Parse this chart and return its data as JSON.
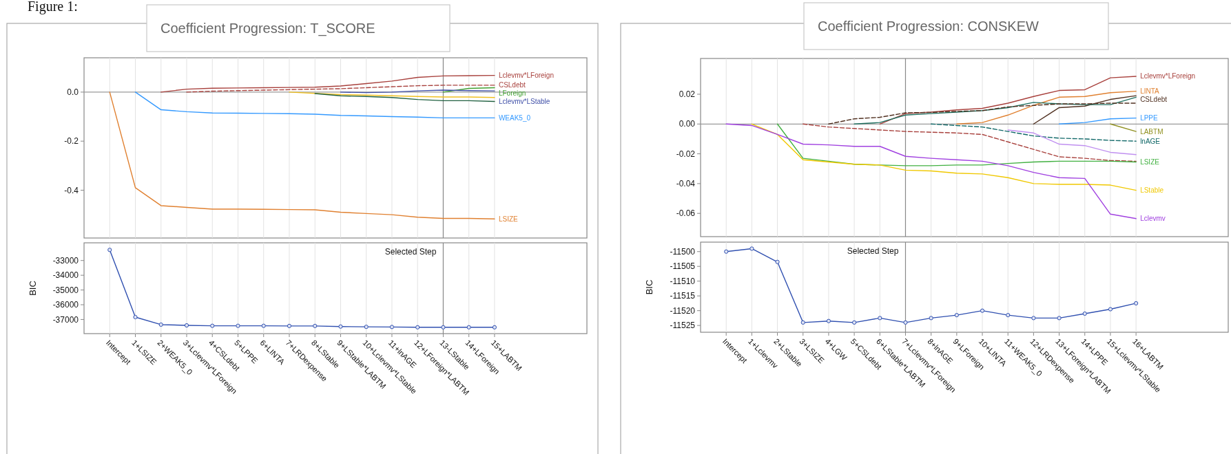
{
  "chart_data": [
    {
      "type": "line",
      "title": "Coefficient Progression: T_SCORE",
      "annotations": [
        "Figure 1:"
      ],
      "categories": [
        "Intercept",
        "1+LSIZE",
        "2+WEAK5_0",
        "3+Lclevmv*LForeign",
        "4+CSLdebt",
        "5+LPPE",
        "6+LINTA",
        "7+LRDexpense",
        "8+LStable",
        "9+LStable*LABTM",
        "10+Lclevmv*LStable",
        "11+lnAGE",
        "12+LForeign*LABTM",
        "13-LStable",
        "14+LForeign",
        "15+LABTM"
      ],
      "ylim": [
        -0.595,
        0.14
      ],
      "yticks": [
        {
          "value": 0,
          "label": "0.0"
        },
        -0.2,
        -0.4
      ],
      "grid": "x",
      "tick_labels": "y",
      "marker": "none",
      "ref_lines": [
        {
          "axis": "y",
          "value": 0
        },
        {
          "axis": "x",
          "value": "13-LStable"
        }
      ],
      "series": [
        {
          "name": "Lclevmv*LForeign",
          "color": "#a8403c",
          "values": [
            null,
            null,
            0,
            0.012,
            0.016,
            0.017,
            0.018,
            0.019,
            0.02,
            0.025,
            0.035,
            0.045,
            0.06,
            0.066,
            0.067,
            0.068
          ]
        },
        {
          "name": "CSLdebt",
          "color": "#a8403c",
          "line_style": "dashed",
          "values": [
            null,
            null,
            null,
            0,
            0.004,
            0.006,
            0.008,
            0.01,
            0.012,
            0.014,
            0.018,
            0.022,
            0.026,
            0.028,
            0.028,
            0.028
          ]
        },
        {
          "name": "LForeign",
          "color": "#40a030",
          "values": [
            null,
            null,
            null,
            null,
            null,
            null,
            null,
            null,
            null,
            null,
            null,
            null,
            null,
            0,
            0.015,
            0.018
          ]
        },
        {
          "name": "Lclevmv*LStable",
          "color": "#4050a8",
          "values": [
            null,
            null,
            null,
            null,
            null,
            null,
            null,
            null,
            null,
            0,
            -0.002,
            0,
            0.005,
            0.008,
            0.006,
            0.005
          ]
        },
        {
          "color": "#f0c020",
          "values": [
            null,
            null,
            null,
            null,
            null,
            null,
            null,
            0,
            -0.005,
            -0.01,
            -0.012,
            -0.015,
            -0.018,
            -0.02,
            -0.02,
            -0.022
          ]
        },
        {
          "color": "#206040",
          "values": [
            null,
            null,
            null,
            null,
            null,
            null,
            null,
            null,
            -0.006,
            -0.015,
            -0.018,
            -0.022,
            -0.03,
            -0.035,
            -0.035,
            -0.038
          ]
        },
        {
          "name": "WEAK5_0",
          "color": "#3399ff",
          "values": [
            null,
            0,
            -0.072,
            -0.08,
            -0.085,
            -0.086,
            -0.087,
            -0.088,
            -0.09,
            -0.095,
            -0.097,
            -0.1,
            -0.102,
            -0.105,
            -0.105,
            -0.105
          ]
        },
        {
          "name": "LSIZE",
          "color": "#e08030",
          "values": [
            0,
            -0.39,
            -0.463,
            -0.47,
            -0.477,
            -0.477,
            -0.478,
            -0.479,
            -0.48,
            -0.49,
            -0.495,
            -0.5,
            -0.51,
            -0.515,
            -0.515,
            -0.517
          ]
        }
      ]
    },
    {
      "type": "line",
      "ylabel": "BIC",
      "categories": [
        "Intercept",
        "1+LSIZE",
        "2+WEAK5_0",
        "3+Lclevmv*LForeign",
        "4+CSLdebt",
        "5+LPPE",
        "6+LINTA",
        "7+LRDexpense",
        "8+LStable",
        "9+LStable*LABTM",
        "10+Lclevmv*LStable",
        "11+lnAGE",
        "12+LForeign*LABTM",
        "13-LStable",
        "14+LForeign",
        "15+LABTM"
      ],
      "ylim": [
        -37960,
        -31800
      ],
      "yticks": [
        -33000,
        -34000,
        -35000,
        -36000,
        -37000
      ],
      "grid": "x",
      "marker": "circle",
      "ref_lines": [
        {
          "axis": "x",
          "value": "13-LStable",
          "label": "Selected Step"
        }
      ],
      "series": [
        {
          "color": "#3050b0",
          "values": [
            -32280,
            -36840,
            -37350,
            -37400,
            -37430,
            -37430,
            -37430,
            -37440,
            -37440,
            -37480,
            -37500,
            -37510,
            -37530,
            -37530,
            -37530,
            -37530
          ]
        }
      ]
    },
    {
      "type": "line",
      "title": "Coefficient Progression: CONSKEW",
      "categories": [
        "Intercept",
        "1+Lclevmv",
        "2+LStable",
        "3+LSIZE",
        "4+LGW",
        "5+CSLdebt",
        "6+LStable*LABTM",
        "7+Lclevmv*LForeign",
        "8+lnAGE",
        "9+LForeign",
        "10+LINTA",
        "11+WEAK5_0",
        "12+LRDexpense",
        "13+LForeign*LABTM",
        "14+LPPE",
        "15+Lclevmv*LStable",
        "16+LABTM"
      ],
      "ylim": [
        -0.0756,
        0.044
      ],
      "yticks": [
        0.02,
        {
          "value": 0,
          "label": "0.00"
        },
        -0.02,
        -0.04,
        -0.06
      ],
      "grid": "x",
      "tick_labels": "y",
      "marker": "none",
      "ref_lines": [
        {
          "axis": "y",
          "value": 0
        },
        {
          "axis": "x",
          "value": "7+Lclevmv*LForeign"
        }
      ],
      "series": [
        {
          "name": "Lclevmv*LForeign",
          "color": "#a8403c",
          "values": [
            null,
            null,
            null,
            null,
            null,
            null,
            0,
            0.007,
            0.008,
            0.0095,
            0.0105,
            0.014,
            0.0185,
            0.0225,
            0.023,
            0.031,
            0.032
          ]
        },
        {
          "name": "LINTA",
          "color": "#e08030",
          "values": [
            null,
            null,
            null,
            null,
            null,
            null,
            null,
            null,
            null,
            0,
            0.001,
            0.006,
            0.0125,
            0.018,
            0.0185,
            0.021,
            0.022
          ]
        },
        {
          "name": "CSLdebt",
          "color": "#503020",
          "values": [
            null,
            null,
            null,
            null,
            null,
            null,
            null,
            null,
            null,
            null,
            null,
            null,
            0,
            0.011,
            0.012,
            0.0165,
            0.019
          ]
        },
        {
          "color": "#207060",
          "values": [
            null,
            null,
            null,
            null,
            null,
            0,
            0.001,
            0.006,
            0.007,
            0.008,
            0.009,
            0.011,
            0.0145,
            0.0135,
            0.013,
            0.013,
            0.018
          ]
        },
        {
          "color": "#503020",
          "line_style": "dashed",
          "values": [
            null,
            null,
            null,
            null,
            0,
            0.0035,
            0.0045,
            0.0075,
            0.0078,
            0.0085,
            0.009,
            0.0115,
            0.0125,
            0.0135,
            0.0135,
            0.014,
            0.014
          ]
        },
        {
          "name": "LPPE",
          "color": "#3399ff",
          "values": [
            null,
            null,
            null,
            null,
            null,
            null,
            null,
            null,
            null,
            null,
            null,
            null,
            null,
            0,
            0.001,
            0.0035,
            0.004
          ]
        },
        {
          "name": "LABTM",
          "color": "#909020",
          "values": [
            null,
            null,
            null,
            null,
            null,
            null,
            null,
            null,
            null,
            null,
            null,
            null,
            null,
            null,
            null,
            0,
            -0.005
          ]
        },
        {
          "name": "lnAGE",
          "color": "#106868",
          "line_style": "dashed",
          "values": [
            null,
            null,
            null,
            null,
            null,
            null,
            null,
            null,
            0,
            -0.001,
            -0.002,
            -0.005,
            -0.008,
            -0.0095,
            -0.01,
            -0.011,
            -0.0115
          ]
        },
        {
          "color": "#a8403c",
          "line_style": "dashed",
          "values": [
            null,
            null,
            null,
            0,
            -0.002,
            -0.003,
            -0.004,
            -0.005,
            -0.0055,
            -0.006,
            -0.007,
            -0.012,
            -0.017,
            -0.022,
            -0.023,
            -0.0245,
            -0.025
          ]
        },
        {
          "color": "#c090f0",
          "values": [
            null,
            null,
            null,
            null,
            null,
            null,
            null,
            null,
            null,
            null,
            null,
            -0.004,
            -0.006,
            -0.0135,
            -0.0145,
            -0.019,
            -0.0205
          ]
        },
        {
          "name": "LSIZE",
          "color": "#40b040",
          "values": [
            null,
            null,
            0,
            -0.023,
            -0.025,
            -0.027,
            -0.0275,
            -0.028,
            -0.028,
            -0.0275,
            -0.0275,
            -0.0265,
            -0.0255,
            -0.025,
            -0.025,
            -0.025,
            -0.0255
          ]
        },
        {
          "name": "LStable",
          "color": "#f0c800",
          "values": [
            null,
            0,
            -0.007,
            -0.024,
            -0.0255,
            -0.027,
            -0.0275,
            -0.031,
            -0.0315,
            -0.033,
            -0.0335,
            -0.036,
            -0.04,
            -0.0405,
            -0.0405,
            -0.041,
            -0.0445
          ]
        },
        {
          "name": "Lclevmv",
          "color": "#a040e0",
          "values": [
            0,
            -0.001,
            -0.007,
            -0.0135,
            -0.014,
            -0.015,
            -0.015,
            -0.0217,
            -0.023,
            -0.024,
            -0.025,
            -0.028,
            -0.0325,
            -0.036,
            -0.0365,
            -0.0605,
            -0.0635
          ]
        }
      ]
    },
    {
      "type": "line",
      "ylabel": "BIC",
      "categories": [
        "Intercept",
        "1+Lclevmv",
        "2+LStable",
        "3+LSIZE",
        "4+LGW",
        "5+CSLdebt",
        "6+LStable*LABTM",
        "7+Lclevmv*LForeign",
        "8+lnAGE",
        "9+LForeign",
        "10+LINTA",
        "11+WEAK5_0",
        "12+LRDexpense",
        "13+LForeign*LABTM",
        "14+LPPE",
        "15+Lclevmv*LStable",
        "16+LABTM"
      ],
      "ylim": [
        -11527.3,
        -11496.8
      ],
      "yticks": [
        -11500,
        -11505,
        -11510,
        -11515,
        -11520,
        -11525
      ],
      "grid": "x",
      "marker": "circle",
      "ref_lines": [
        {
          "axis": "x",
          "value": "7+Lclevmv*LForeign",
          "label": "Selected Step"
        }
      ],
      "series": [
        {
          "color": "#3050b0",
          "values": [
            -11500,
            -11499,
            -11503.5,
            -11524,
            -11523.5,
            -11524,
            -11522.5,
            -11524,
            -11522.5,
            -11521.5,
            -11520,
            -11521.5,
            -11522.5,
            -11522.5,
            -11521,
            -11519.5,
            -11517.5
          ]
        }
      ]
    }
  ]
}
